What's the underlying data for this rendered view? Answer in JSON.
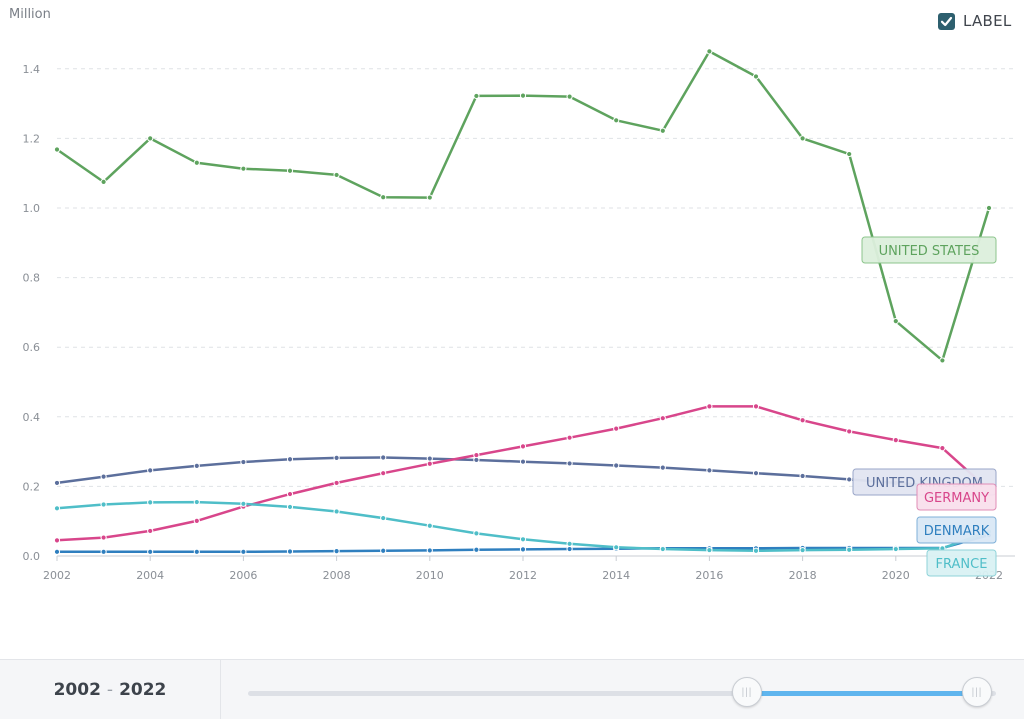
{
  "chart_data": {
    "type": "line",
    "unit_label": "Million",
    "x": [
      2002,
      2003,
      2004,
      2005,
      2006,
      2007,
      2008,
      2009,
      2010,
      2011,
      2012,
      2013,
      2014,
      2015,
      2016,
      2017,
      2018,
      2019,
      2020,
      2021,
      2022
    ],
    "x_ticks": [
      "2002",
      "2004",
      "2006",
      "2008",
      "2010",
      "2012",
      "2014",
      "2016",
      "2018",
      "2020",
      "2022"
    ],
    "y_ticks": [
      "0.0",
      "0.2",
      "0.4",
      "0.6",
      "0.8",
      "1.0",
      "1.2",
      "1.4"
    ],
    "ylim": [
      0,
      1.5
    ],
    "grid": true,
    "series": [
      {
        "name": "UNITED STATES",
        "color": "#5ea35e",
        "label_bg": "#dcefdc",
        "label_border": "#8cc58c",
        "values": [
          1.168,
          1.075,
          1.2,
          1.13,
          1.113,
          1.107,
          1.095,
          1.031,
          1.03,
          1.322,
          1.323,
          1.32,
          1.252,
          1.222,
          1.45,
          1.378,
          1.2,
          1.155,
          0.675,
          0.562,
          1.0
        ]
      },
      {
        "name": "UNITED KINGDOM",
        "color": "#5c6f9c",
        "label_bg": "#e2e5f1",
        "label_border": "#9aa6c8",
        "values": [
          0.21,
          0.228,
          0.246,
          0.259,
          0.27,
          0.278,
          0.282,
          0.283,
          0.28,
          0.276,
          0.271,
          0.266,
          0.26,
          0.254,
          0.246,
          0.238,
          0.23,
          0.22,
          0.21,
          0.2,
          0.2
        ]
      },
      {
        "name": "GERMANY",
        "color": "#d8468b",
        "label_bg": "#f9dfec",
        "label_border": "#e08db6",
        "values": [
          0.045,
          0.053,
          0.072,
          0.101,
          0.142,
          0.178,
          0.21,
          0.238,
          0.265,
          0.29,
          0.315,
          0.34,
          0.366,
          0.396,
          0.43,
          0.43,
          0.39,
          0.358,
          0.333,
          0.31,
          0.19
        ]
      },
      {
        "name": "DENMARK",
        "color": "#2f7fbf",
        "label_bg": "#d9e8f5",
        "label_border": "#7fb0d8",
        "values": [
          0.012,
          0.012,
          0.012,
          0.012,
          0.012,
          0.013,
          0.014,
          0.015,
          0.016,
          0.018,
          0.019,
          0.02,
          0.021,
          0.022,
          0.022,
          0.022,
          0.023,
          0.023,
          0.023,
          0.023,
          0.06
        ]
      },
      {
        "name": "FRANCE",
        "color": "#4fbec8",
        "label_bg": "#d9f1f3",
        "label_border": "#8fd3d9",
        "values": [
          0.137,
          0.148,
          0.154,
          0.155,
          0.15,
          0.141,
          0.128,
          0.109,
          0.087,
          0.065,
          0.048,
          0.035,
          0.025,
          0.02,
          0.017,
          0.015,
          0.017,
          0.018,
          0.02,
          0.022,
          0.07
        ]
      }
    ]
  },
  "controls": {
    "label_toggle": "LABEL",
    "label_checked": true
  },
  "footer": {
    "year_start": "2002",
    "year_end": "2022",
    "separator": "-"
  }
}
